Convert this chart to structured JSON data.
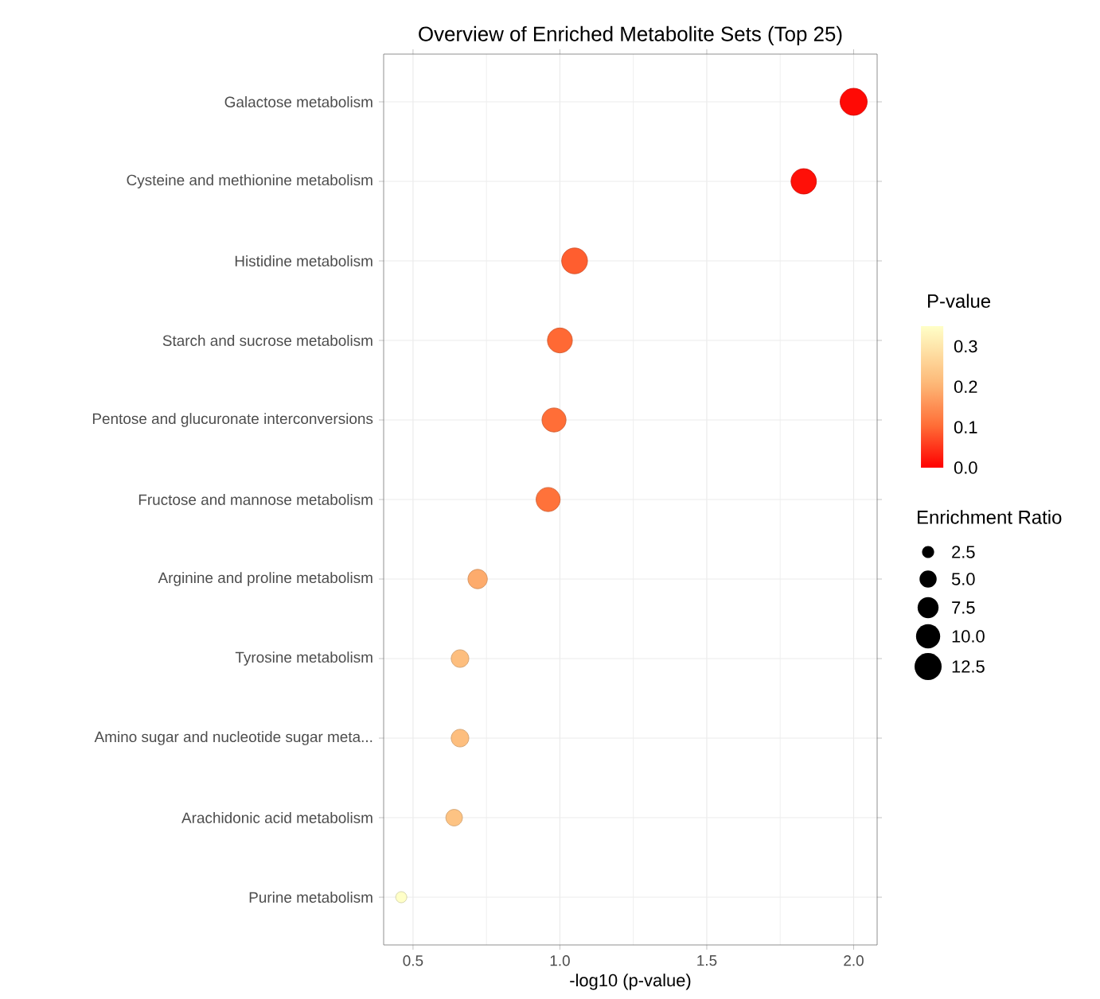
{
  "chart_data": {
    "type": "bubble",
    "orientation": "horizontal",
    "title": "Overview of Enriched Metabolite Sets (Top 25)",
    "xlabel": "-log10 (p-value)",
    "clabel": "P-value",
    "legend_title": "Enrichment Ratio",
    "categories": [
      "Galactose metabolism",
      "Cysteine and methionine metabolism",
      "Histidine metabolism",
      "Starch and sucrose metabolism",
      "Pentose and glucuronate interconversions",
      "Fructose and mannose metabolism",
      "Arginine and proline metabolism",
      "Tyrosine metabolism",
      "Amino sugar and nucleotide sugar meta...",
      "Arachidonic acid metabolism",
      "Purine metabolism"
    ],
    "values": [
      2.0,
      1.83,
      1.05,
      1.0,
      0.98,
      0.96,
      0.72,
      0.66,
      0.66,
      0.64,
      0.46
    ],
    "sizes": [
      12.5,
      11.0,
      11.4,
      10.6,
      9.9,
      9.9,
      6.4,
      5.3,
      5.3,
      4.7,
      2.1
    ],
    "cvalues": [
      0.01,
      0.015,
      0.09,
      0.1,
      0.105,
      0.11,
      0.19,
      0.22,
      0.22,
      0.23,
      0.35
    ],
    "size_legend": [
      {
        "value": 2.5,
        "label": "2.5"
      },
      {
        "value": 5,
        "label": "5.0"
      },
      {
        "value": 7.5,
        "label": "7.5"
      },
      {
        "value": 10,
        "label": "10.0"
      },
      {
        "value": 12.5,
        "label": "12.5"
      }
    ],
    "xlim": [
      0.4,
      2.08
    ],
    "xticks": [
      {
        "value": 0.5,
        "label": "0.5"
      },
      {
        "value": 1.0,
        "label": "1.0"
      },
      {
        "value": 1.5,
        "label": "1.5"
      },
      {
        "value": 2.0,
        "label": "2.0"
      }
    ],
    "clim": [
      0,
      0.35
    ],
    "cticks": [
      {
        "value": 0,
        "label": "0.0"
      },
      {
        "value": 0.1,
        "label": "0.1"
      },
      {
        "value": 0.2,
        "label": "0.2"
      },
      {
        "value": 0.3,
        "label": "0.3"
      }
    ],
    "grid": true
  }
}
